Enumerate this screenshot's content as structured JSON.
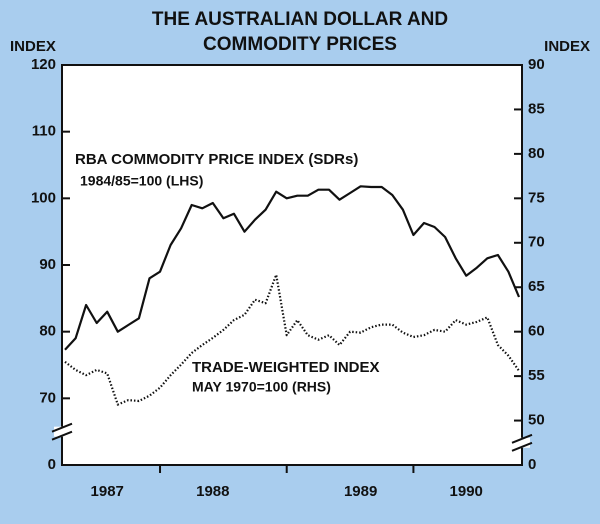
{
  "chart_data": {
    "type": "line",
    "title": [
      "THE AUSTRALIAN DOLLAR AND",
      "COMMODITY PRICES"
    ],
    "ylabel": "INDEX",
    "y2label": "INDEX",
    "categories": [
      null,
      null,
      null,
      null,
      "1987",
      null,
      null,
      null,
      null,
      null,
      null,
      null,
      null,
      null,
      "1988",
      null,
      null,
      null,
      null,
      null,
      null,
      null,
      null,
      null,
      null,
      null,
      null,
      null,
      "1989",
      null,
      null,
      null,
      null,
      null,
      null,
      null,
      null,
      null,
      "1990",
      null,
      null,
      null,
      null,
      null
    ],
    "series": [
      {
        "name": "RBA COMMODITY PRICE INDEX (SDRs)",
        "note": "1984/85=100 (LHS)",
        "color": "#111111",
        "style": "solid",
        "axis": "y",
        "values": [
          77.3,
          79,
          84,
          81.3,
          83,
          80,
          81,
          82,
          88,
          89,
          93,
          95.5,
          99,
          98.5,
          99.3,
          97,
          97.7,
          95,
          96.8,
          98.3,
          101,
          100,
          100.4,
          100.4,
          101.3,
          101.3,
          99.8,
          100.8,
          101.8,
          101.7,
          101.7,
          100.5,
          98.3,
          94.5,
          96.3,
          95.7,
          94.2,
          91,
          88.4,
          89.6,
          91,
          91.5,
          89,
          85.2
        ]
      },
      {
        "name": "TRADE-WEIGHTED INDEX",
        "note": "MAY 1970=100 (RHS)",
        "color": "#111111",
        "style": "dotted",
        "axis": "y2",
        "values": [
          56.6,
          55.7,
          55.1,
          55.7,
          55.3,
          51.8,
          52.3,
          52.2,
          52.8,
          53.7,
          55.1,
          56.3,
          57.6,
          58.5,
          59.3,
          60.2,
          61.3,
          61.9,
          63.6,
          63.2,
          66.4,
          59.6,
          61.3,
          59.6,
          59.1,
          59.6,
          58.5,
          60,
          59.9,
          60.5,
          60.8,
          60.8,
          59.9,
          59.4,
          59.6,
          60.2,
          60,
          61.3,
          60.8,
          61.1,
          61.6,
          58.5,
          57.3,
          55.6
        ]
      }
    ],
    "ylim": [
      0,
      120
    ],
    "yticks": [
      0,
      70,
      80,
      90,
      100,
      110,
      120
    ],
    "y2lim": [
      0,
      90
    ],
    "y2ticks": [
      0,
      50,
      55,
      60,
      65,
      70,
      75,
      80,
      85,
      90
    ],
    "axis_break": true
  }
}
